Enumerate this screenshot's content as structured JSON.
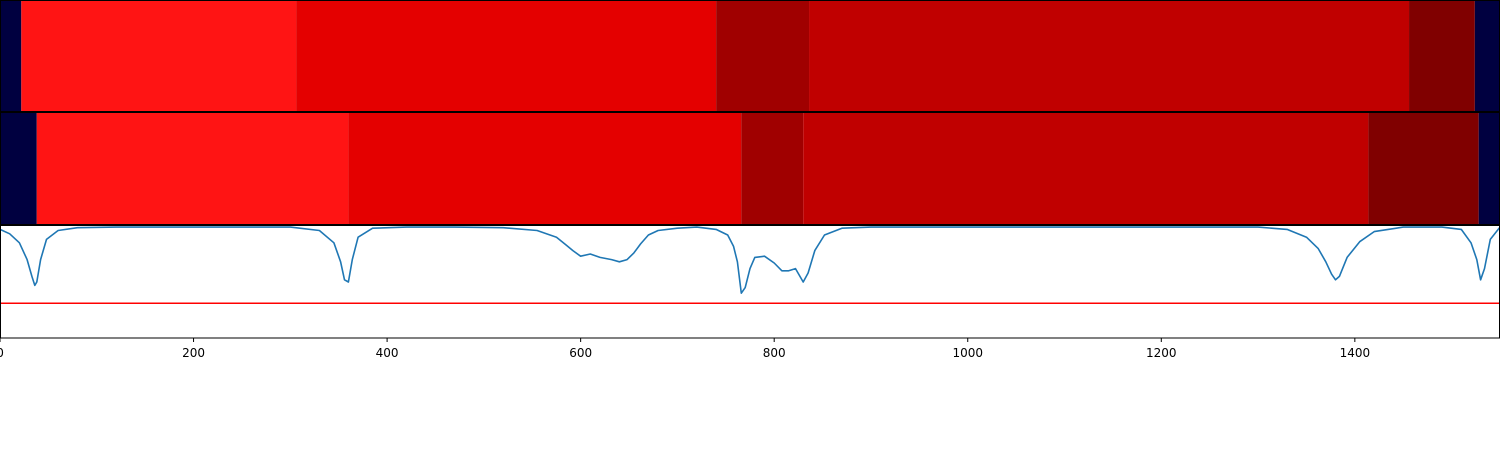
{
  "chart_data": [
    {
      "type": "heatmap",
      "panel": "segmentation-track-1",
      "xlim": [
        0,
        1550
      ],
      "segments": [
        {
          "start": 0,
          "end": 22,
          "color": "#000040"
        },
        {
          "start": 22,
          "end": 306,
          "color": "#ff1414"
        },
        {
          "start": 306,
          "end": 740,
          "color": "#e40000"
        },
        {
          "start": 740,
          "end": 836,
          "color": "#a00000"
        },
        {
          "start": 836,
          "end": 1456,
          "color": "#c00000"
        },
        {
          "start": 1456,
          "end": 1524,
          "color": "#800000"
        },
        {
          "start": 1524,
          "end": 1550,
          "color": "#000040"
        }
      ]
    },
    {
      "type": "heatmap",
      "panel": "segmentation-track-2",
      "xlim": [
        0,
        1550
      ],
      "segments": [
        {
          "start": 0,
          "end": 38,
          "color": "#000040"
        },
        {
          "start": 38,
          "end": 360,
          "color": "#ff1414"
        },
        {
          "start": 360,
          "end": 766,
          "color": "#e40000"
        },
        {
          "start": 766,
          "end": 830,
          "color": "#a00000"
        },
        {
          "start": 830,
          "end": 1414,
          "color": "#c00000"
        },
        {
          "start": 1414,
          "end": 1528,
          "color": "#800000"
        },
        {
          "start": 1528,
          "end": 1550,
          "color": "#000040"
        }
      ]
    },
    {
      "type": "line",
      "panel": "signal-plot",
      "xlim": [
        0,
        1550
      ],
      "ylim": [
        0,
        1
      ],
      "grid": false,
      "xticks": [
        0,
        200,
        400,
        600,
        800,
        1000,
        1200,
        1400
      ],
      "xtick_labels": [
        "0",
        "200",
        "400",
        "600",
        "800",
        "1000",
        "1200",
        "1400"
      ],
      "threshold": {
        "y": 0.31,
        "color": "#ff0000"
      },
      "series": [
        {
          "color": "#1f77b4",
          "x": [
            0,
            10,
            20,
            28,
            33,
            36,
            38,
            42,
            48,
            60,
            80,
            120,
            200,
            300,
            330,
            345,
            352,
            356,
            360,
            364,
            370,
            385,
            420,
            470,
            520,
            555,
            575,
            585,
            592,
            600,
            610,
            620,
            632,
            640,
            648,
            655,
            662,
            670,
            680,
            700,
            720,
            740,
            752,
            758,
            762,
            766,
            770,
            775,
            780,
            790,
            800,
            808,
            815,
            822,
            830,
            835,
            842,
            852,
            870,
            900,
            1000,
            1100,
            1200,
            1300,
            1330,
            1350,
            1362,
            1370,
            1376,
            1380,
            1384,
            1392,
            1405,
            1420,
            1450,
            1490,
            1510,
            1520,
            1526,
            1530,
            1534,
            1540,
            1550
          ],
          "y": [
            0.97,
            0.93,
            0.85,
            0.7,
            0.55,
            0.47,
            0.5,
            0.7,
            0.88,
            0.96,
            0.985,
            0.99,
            0.99,
            0.99,
            0.96,
            0.85,
            0.68,
            0.52,
            0.5,
            0.7,
            0.9,
            0.98,
            0.99,
            0.99,
            0.985,
            0.96,
            0.9,
            0.83,
            0.78,
            0.73,
            0.75,
            0.72,
            0.7,
            0.68,
            0.7,
            0.76,
            0.84,
            0.92,
            0.96,
            0.98,
            0.99,
            0.97,
            0.92,
            0.82,
            0.68,
            0.4,
            0.45,
            0.62,
            0.72,
            0.73,
            0.67,
            0.6,
            0.6,
            0.62,
            0.5,
            0.58,
            0.78,
            0.92,
            0.98,
            0.99,
            0.99,
            0.99,
            0.99,
            0.99,
            0.97,
            0.9,
            0.8,
            0.68,
            0.57,
            0.52,
            0.55,
            0.72,
            0.86,
            0.95,
            0.99,
            0.99,
            0.97,
            0.85,
            0.7,
            0.52,
            0.62,
            0.88,
            0.99
          ]
        }
      ]
    }
  ]
}
